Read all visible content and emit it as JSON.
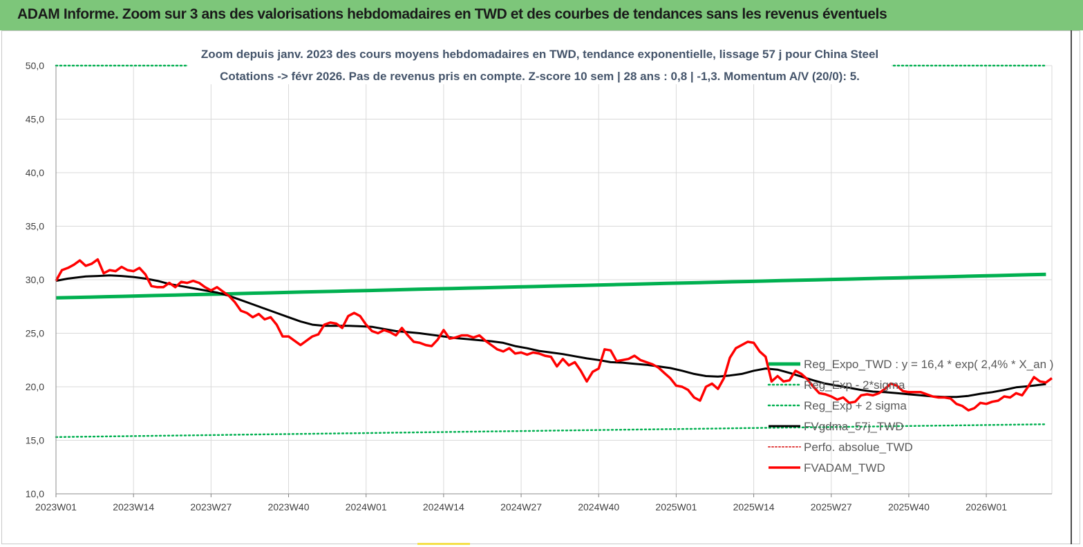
{
  "header": {
    "title": "ADAM Informe. Zoom sur 3 ans des valorisations hebdomadaires en TWD et des courbes de tendances sans les revenus éventuels"
  },
  "colors": {
    "header_bg": "#7dc67a",
    "reg_expo": "#00b050",
    "price": "#ff0000",
    "smoothing": "#000000",
    "perfo": "#e04040",
    "grid": "#d9d9d9"
  },
  "chart_data": {
    "type": "line",
    "title_line1": "Zoom depuis janv. 2023 des cours moyens hebdomadaires en TWD, tendance exponentielle, lissage 57 j pour China Steel",
    "title_line2": "Cotations -> févr 2026.  Pas de revenus pris en compte. Z-score 10 sem  | 28 ans : 0,8 | -1,3. Momentum A/V (20/0): 5.",
    "ylim": [
      10,
      50
    ],
    "yticks": [
      "10,0",
      "15,0",
      "20,0",
      "25,0",
      "30,0",
      "35,0",
      "40,0",
      "45,0",
      "50,0"
    ],
    "xticks": [
      "2023W01",
      "2023W14",
      "2023W27",
      "2023W40",
      "2024W01",
      "2024W14",
      "2024W27",
      "2024W40",
      "2025W01",
      "2025W14",
      "2025W27",
      "2025W40",
      "2026W01"
    ],
    "grid": true,
    "legend_position": "right-middle",
    "series": [
      {
        "name": "Reg_Expo_TWD : y = 16,4 * exp( 2,4% *  X_an )",
        "style": "solid-thick",
        "points": [
          [
            0,
            28.3
          ],
          [
            166,
            30.5
          ]
        ]
      },
      {
        "name": "Reg_Exp - 2*sigma",
        "style": "dotted",
        "points": [
          [
            0,
            50.0
          ],
          [
            166,
            50.0
          ]
        ]
      },
      {
        "name": "Reg_Exp + 2 sigma",
        "style": "dotted",
        "points": [
          [
            0,
            15.3
          ],
          [
            166,
            16.5
          ]
        ]
      },
      {
        "name": "FVgdma_57j_TWD",
        "style": "solid",
        "points": [
          [
            0,
            29.9
          ],
          [
            2,
            30.1
          ],
          [
            5,
            30.3
          ],
          [
            7,
            30.35
          ],
          [
            9,
            30.4
          ],
          [
            11,
            30.35
          ],
          [
            13,
            30.25
          ],
          [
            15,
            30.1
          ],
          [
            17,
            29.9
          ],
          [
            19,
            29.6
          ],
          [
            21,
            29.4
          ],
          [
            23,
            29.2
          ],
          [
            25,
            29.0
          ],
          [
            27,
            28.8
          ],
          [
            29,
            28.5
          ],
          [
            31,
            28.1
          ],
          [
            33,
            27.7
          ],
          [
            35,
            27.3
          ],
          [
            37,
            26.9
          ],
          [
            39,
            26.5
          ],
          [
            41,
            26.1
          ],
          [
            43,
            25.8
          ],
          [
            45,
            25.7
          ],
          [
            47,
            25.7
          ],
          [
            49,
            25.7
          ],
          [
            51,
            25.65
          ],
          [
            53,
            25.6
          ],
          [
            55,
            25.4
          ],
          [
            57,
            25.2
          ],
          [
            59,
            25.1
          ],
          [
            61,
            25.0
          ],
          [
            63,
            24.85
          ],
          [
            65,
            24.7
          ],
          [
            67,
            24.55
          ],
          [
            69,
            24.45
          ],
          [
            71,
            24.35
          ],
          [
            73,
            24.25
          ],
          [
            75,
            24.1
          ],
          [
            77,
            23.8
          ],
          [
            79,
            23.6
          ],
          [
            81,
            23.35
          ],
          [
            83,
            23.2
          ],
          [
            85,
            23.05
          ],
          [
            87,
            22.85
          ],
          [
            89,
            22.65
          ],
          [
            91,
            22.5
          ],
          [
            93,
            22.3
          ],
          [
            95,
            22.25
          ],
          [
            97,
            22.15
          ],
          [
            99,
            22.05
          ],
          [
            101,
            21.9
          ],
          [
            103,
            21.75
          ],
          [
            105,
            21.5
          ],
          [
            107,
            21.2
          ],
          [
            109,
            21.0
          ],
          [
            111,
            20.95
          ],
          [
            113,
            21.05
          ],
          [
            115,
            21.2
          ],
          [
            117,
            21.5
          ],
          [
            119,
            21.7
          ],
          [
            121,
            21.6
          ],
          [
            123,
            21.3
          ],
          [
            125,
            20.95
          ],
          [
            127,
            20.6
          ],
          [
            129,
            20.3
          ],
          [
            131,
            20.1
          ],
          [
            133,
            19.9
          ],
          [
            135,
            19.7
          ],
          [
            137,
            19.55
          ],
          [
            139,
            19.5
          ],
          [
            141,
            19.4
          ],
          [
            143,
            19.3
          ],
          [
            145,
            19.2
          ],
          [
            147,
            19.1
          ],
          [
            149,
            19.05
          ],
          [
            151,
            19.05
          ],
          [
            153,
            19.15
          ],
          [
            155,
            19.35
          ],
          [
            157,
            19.5
          ],
          [
            159,
            19.7
          ],
          [
            161,
            19.95
          ],
          [
            163,
            20.05
          ],
          [
            166,
            20.25
          ]
        ]
      },
      {
        "name": "Perfo. absolue_TWD",
        "style": "dotted",
        "points": []
      },
      {
        "name": "FVADAM_TWD",
        "style": "solid-thick",
        "points": [
          [
            0,
            29.9
          ],
          [
            1,
            30.9
          ],
          [
            2,
            31.1
          ],
          [
            3,
            31.4
          ],
          [
            4,
            31.8
          ],
          [
            5,
            31.3
          ],
          [
            6,
            31.5
          ],
          [
            7,
            31.9
          ],
          [
            8,
            30.6
          ],
          [
            9,
            30.9
          ],
          [
            10,
            30.8
          ],
          [
            11,
            31.2
          ],
          [
            12,
            30.9
          ],
          [
            13,
            30.8
          ],
          [
            14,
            31.1
          ],
          [
            15,
            30.5
          ],
          [
            16,
            29.4
          ],
          [
            17,
            29.3
          ],
          [
            18,
            29.3
          ],
          [
            19,
            29.7
          ],
          [
            20,
            29.3
          ],
          [
            21,
            29.8
          ],
          [
            22,
            29.7
          ],
          [
            23,
            29.9
          ],
          [
            24,
            29.7
          ],
          [
            25,
            29.3
          ],
          [
            26,
            29.0
          ],
          [
            27,
            29.3
          ],
          [
            28,
            28.9
          ],
          [
            29,
            28.5
          ],
          [
            30,
            27.9
          ],
          [
            31,
            27.1
          ],
          [
            32,
            26.9
          ],
          [
            33,
            26.5
          ],
          [
            34,
            26.8
          ],
          [
            35,
            26.3
          ],
          [
            36,
            26.5
          ],
          [
            37,
            25.8
          ],
          [
            38,
            24.7
          ],
          [
            39,
            24.7
          ],
          [
            40,
            24.3
          ],
          [
            41,
            23.9
          ],
          [
            42,
            24.3
          ],
          [
            43,
            24.7
          ],
          [
            44,
            24.9
          ],
          [
            45,
            25.8
          ],
          [
            46,
            26.0
          ],
          [
            47,
            25.9
          ],
          [
            48,
            25.5
          ],
          [
            49,
            26.6
          ],
          [
            50,
            26.9
          ],
          [
            51,
            26.6
          ],
          [
            52,
            25.8
          ],
          [
            53,
            25.2
          ],
          [
            54,
            25.0
          ],
          [
            55,
            25.3
          ],
          [
            56,
            25.1
          ],
          [
            57,
            24.8
          ],
          [
            58,
            25.5
          ],
          [
            59,
            24.8
          ],
          [
            60,
            24.2
          ],
          [
            61,
            24.1
          ],
          [
            62,
            23.9
          ],
          [
            63,
            23.8
          ],
          [
            64,
            24.4
          ],
          [
            65,
            25.3
          ],
          [
            66,
            24.5
          ],
          [
            67,
            24.6
          ],
          [
            68,
            24.8
          ],
          [
            69,
            24.8
          ],
          [
            70,
            24.6
          ],
          [
            71,
            24.8
          ],
          [
            72,
            24.3
          ],
          [
            73,
            23.9
          ],
          [
            74,
            23.5
          ],
          [
            75,
            23.3
          ],
          [
            76,
            23.6
          ],
          [
            77,
            23.1
          ],
          [
            78,
            23.2
          ],
          [
            79,
            23.0
          ],
          [
            80,
            23.2
          ],
          [
            81,
            23.1
          ],
          [
            82,
            22.9
          ],
          [
            83,
            22.8
          ],
          [
            84,
            21.9
          ],
          [
            85,
            22.6
          ],
          [
            86,
            22.0
          ],
          [
            87,
            22.3
          ],
          [
            88,
            21.5
          ],
          [
            89,
            20.5
          ],
          [
            90,
            21.4
          ],
          [
            91,
            21.7
          ],
          [
            92,
            23.5
          ],
          [
            93,
            23.4
          ],
          [
            94,
            22.4
          ],
          [
            95,
            22.5
          ],
          [
            96,
            22.6
          ],
          [
            97,
            22.9
          ],
          [
            98,
            22.5
          ],
          [
            99,
            22.3
          ],
          [
            100,
            22.1
          ],
          [
            101,
            21.8
          ],
          [
            102,
            21.3
          ],
          [
            103,
            20.8
          ],
          [
            104,
            20.1
          ],
          [
            105,
            20.0
          ],
          [
            106,
            19.7
          ],
          [
            107,
            19.0
          ],
          [
            108,
            18.7
          ],
          [
            109,
            20.0
          ],
          [
            110,
            20.3
          ],
          [
            111,
            19.8
          ],
          [
            112,
            20.8
          ],
          [
            113,
            22.7
          ],
          [
            114,
            23.6
          ],
          [
            115,
            23.9
          ],
          [
            116,
            24.2
          ],
          [
            117,
            24.1
          ],
          [
            118,
            23.3
          ],
          [
            119,
            22.8
          ],
          [
            120,
            20.5
          ],
          [
            121,
            21.0
          ],
          [
            122,
            20.5
          ],
          [
            123,
            20.6
          ],
          [
            124,
            21.5
          ],
          [
            125,
            21.2
          ],
          [
            126,
            20.7
          ],
          [
            127,
            20.0
          ],
          [
            128,
            19.4
          ],
          [
            129,
            19.3
          ],
          [
            130,
            19.1
          ],
          [
            131,
            18.8
          ],
          [
            132,
            19.0
          ],
          [
            133,
            18.5
          ],
          [
            134,
            18.6
          ],
          [
            135,
            19.2
          ],
          [
            136,
            19.3
          ],
          [
            137,
            19.2
          ],
          [
            138,
            19.4
          ],
          [
            139,
            19.8
          ],
          [
            140,
            20.3
          ],
          [
            141,
            20.1
          ],
          [
            142,
            19.6
          ],
          [
            143,
            19.5
          ],
          [
            144,
            19.5
          ],
          [
            145,
            19.5
          ],
          [
            146,
            19.3
          ],
          [
            147,
            19.1
          ],
          [
            148,
            19.0
          ],
          [
            149,
            19.0
          ],
          [
            150,
            18.9
          ],
          [
            151,
            18.4
          ],
          [
            152,
            18.2
          ],
          [
            153,
            17.8
          ],
          [
            154,
            18.0
          ],
          [
            155,
            18.5
          ],
          [
            156,
            18.4
          ],
          [
            157,
            18.6
          ],
          [
            158,
            18.7
          ],
          [
            159,
            19.1
          ],
          [
            160,
            19.0
          ],
          [
            161,
            19.4
          ],
          [
            162,
            19.2
          ],
          [
            163,
            20.0
          ],
          [
            164,
            20.9
          ],
          [
            165,
            20.5
          ],
          [
            166,
            20.4
          ],
          [
            167,
            20.8
          ]
        ]
      }
    ]
  }
}
